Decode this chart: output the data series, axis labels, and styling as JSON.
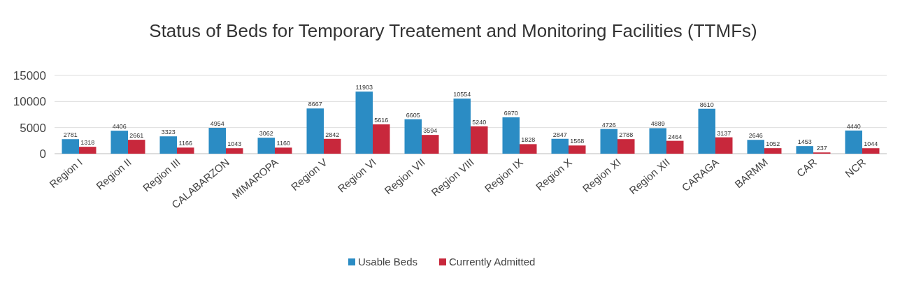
{
  "chart_data": {
    "type": "bar",
    "title": "Status of Beds for Temporary Treatement and Monitoring Facilities (TTMFs)",
    "categories": [
      "Region I",
      "Region II",
      "Region III",
      "CALABARZON",
      "MIMAROPA",
      "Region V",
      "Region VI",
      "Region VII",
      "Region VIII",
      "Region IX",
      "Region X",
      "Region XI",
      "Region XII",
      "CARAGA",
      "BARMM",
      "CAR",
      "NCR"
    ],
    "series": [
      {
        "name": "Usable Beds",
        "color": "#2b8cc4",
        "values": [
          2781,
          4406,
          3323,
          4954,
          3062,
          8667,
          11903,
          6605,
          10554,
          6970,
          2847,
          4726,
          4889,
          8610,
          2646,
          1453,
          4440
        ]
      },
      {
        "name": "Currently Admitted",
        "color": "#c8283c",
        "values": [
          1318,
          2661,
          1166,
          1043,
          1160,
          2842,
          5616,
          3594,
          5240,
          1828,
          1568,
          2788,
          2464,
          3137,
          1052,
          237,
          1044
        ]
      }
    ],
    "ylim": [
      0,
      15000
    ],
    "yticks": [
      0,
      5000,
      10000,
      15000
    ],
    "grid": "y",
    "legend": "bottom",
    "data_labels": true
  }
}
